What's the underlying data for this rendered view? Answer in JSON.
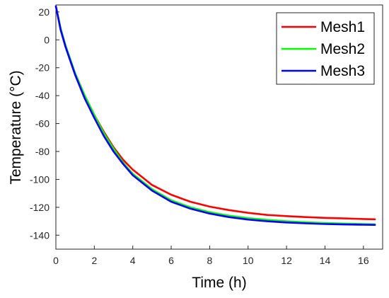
{
  "chart_data": {
    "type": "line",
    "title": "",
    "xlabel": "Time (h)",
    "ylabel": "Temperature (°C)",
    "xlim": [
      0,
      17
    ],
    "ylim": [
      -150,
      25
    ],
    "xticks": [
      0,
      2,
      4,
      6,
      8,
      10,
      12,
      14,
      16
    ],
    "yticks": [
      -140,
      -120,
      -100,
      -80,
      -60,
      -40,
      -20,
      0,
      20
    ],
    "grid": false,
    "legend_position": "top-right",
    "series": [
      {
        "name": "Mesh1",
        "color": "#ff0000",
        "x": [
          0,
          0.25,
          0.5,
          0.75,
          1,
          1.5,
          2,
          2.5,
          3,
          3.5,
          4,
          5,
          6,
          7,
          8,
          9,
          10,
          11,
          12,
          13,
          14,
          15,
          16,
          16.6
        ],
        "y": [
          24,
          8,
          -4,
          -14,
          -24,
          -40,
          -54,
          -66,
          -77,
          -86,
          -93,
          -104,
          -111,
          -116,
          -119.5,
          -122,
          -124,
          -125.5,
          -126.3,
          -127,
          -127.6,
          -128,
          -128.4,
          -128.6
        ]
      },
      {
        "name": "Mesh2",
        "color": "#00ff00",
        "x": [
          0,
          0.25,
          0.5,
          0.75,
          1,
          1.5,
          2,
          2.5,
          3,
          3.5,
          4,
          5,
          6,
          7,
          8,
          9,
          10,
          11,
          12,
          13,
          14,
          15,
          16,
          16.6
        ],
        "y": [
          24,
          8,
          -4,
          -14,
          -24,
          -40,
          -54,
          -67,
          -78,
          -88,
          -96,
          -107,
          -115,
          -120,
          -123.5,
          -126,
          -127.8,
          -129,
          -130,
          -130.8,
          -131.3,
          -131.7,
          -132,
          -132.2
        ]
      },
      {
        "name": "Mesh3",
        "color": "#0000ff",
        "x": [
          0,
          0.25,
          0.5,
          0.75,
          1,
          1.5,
          2,
          2.5,
          3,
          3.5,
          4,
          5,
          6,
          7,
          8,
          9,
          10,
          11,
          12,
          13,
          14,
          15,
          16,
          16.6
        ],
        "y": [
          24,
          7,
          -5,
          -15,
          -25,
          -42,
          -56,
          -69,
          -80,
          -89,
          -97,
          -108,
          -116,
          -121,
          -124.5,
          -127,
          -128.8,
          -130,
          -130.9,
          -131.5,
          -132,
          -132.3,
          -132.5,
          -132.6
        ]
      }
    ]
  }
}
